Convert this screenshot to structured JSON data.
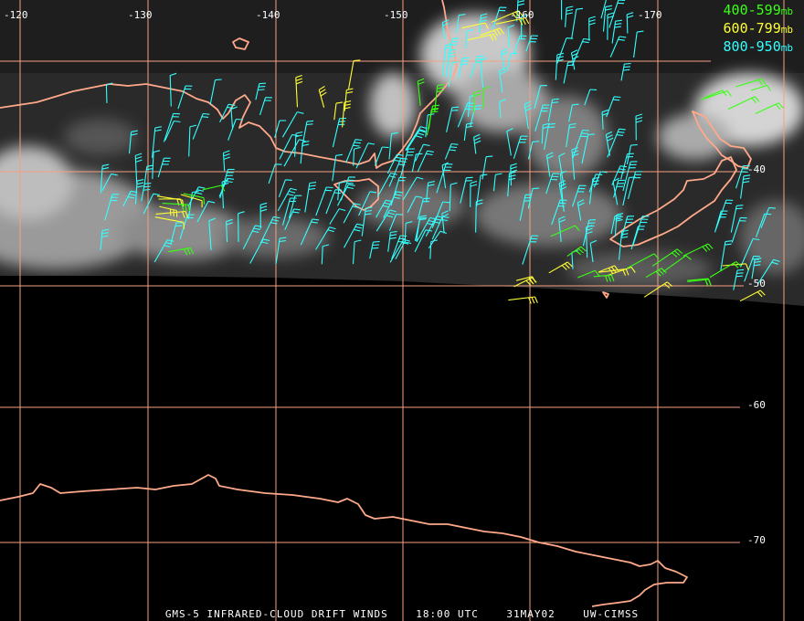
{
  "legend": [
    {
      "range": "400-599",
      "unit": "mb",
      "color": "#39ff14"
    },
    {
      "range": "600-799",
      "unit": "mb",
      "color": "#ffff33"
    },
    {
      "range": "800-950",
      "unit": "mb",
      "color": "#33ffff"
    }
  ],
  "lon_labels": [
    "-120",
    "-130",
    "-140",
    "-150",
    "-160",
    "-170"
  ],
  "lat_labels": [
    "-40",
    "-50",
    "-60",
    "-70"
  ],
  "footer": {
    "product": "GMS-5 INFRARED-CLOUD DRIFT WINDS",
    "time": "18:00 UTC",
    "date": "31MAY02",
    "source": "UW-CIMSS"
  },
  "colors": {
    "grid": "#f5a080",
    "coast": "#ffa98a",
    "background": "#000000"
  }
}
